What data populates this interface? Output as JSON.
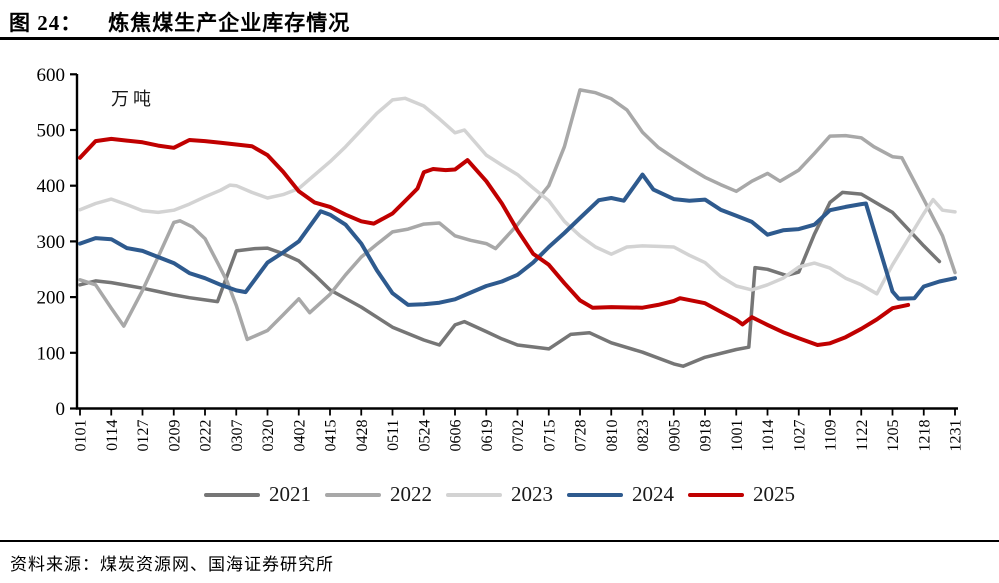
{
  "header": {
    "figure_label": "图 24：",
    "title": "炼焦煤生产企业库存情况"
  },
  "footer": {
    "source": "资料来源：煤炭资源网、国海证券研究所"
  },
  "chart_data": {
    "type": "line",
    "title": "炼焦煤生产企业库存情况",
    "unit_label": "万吨",
    "xlabel": "",
    "ylabel": "万吨",
    "grid": false,
    "legend_position": "bottom",
    "ylim": [
      0,
      600
    ],
    "y_ticks": [
      0,
      100,
      200,
      300,
      400,
      500,
      600
    ],
    "x_note": "categories are MMDD dates; series points are [category_index, value] pairs, fractional index = between labels",
    "categories": [
      "0101",
      "0114",
      "0127",
      "0209",
      "0222",
      "0307",
      "0320",
      "0402",
      "0415",
      "0428",
      "0511",
      "0524",
      "0606",
      "0619",
      "0702",
      "0715",
      "0728",
      "0810",
      "0823",
      "0905",
      "0918",
      "1001",
      "1014",
      "1027",
      "1109",
      "1122",
      "1205",
      "1218",
      "1231"
    ],
    "series": [
      {
        "name": "2021",
        "color": "#767676",
        "points": [
          [
            0,
            222
          ],
          [
            0.5,
            229
          ],
          [
            1,
            226
          ],
          [
            1.5,
            221
          ],
          [
            2,
            216
          ],
          [
            2.5,
            210
          ],
          [
            3,
            204
          ],
          [
            3.5,
            199
          ],
          [
            4,
            195
          ],
          [
            4.4,
            192
          ],
          [
            5,
            283
          ],
          [
            5.6,
            287
          ],
          [
            6,
            288
          ],
          [
            6.5,
            278
          ],
          [
            7,
            265
          ],
          [
            7.5,
            240
          ],
          [
            8,
            213
          ],
          [
            9,
            182
          ],
          [
            10,
            146
          ],
          [
            11,
            123
          ],
          [
            11.5,
            114
          ],
          [
            12,
            150
          ],
          [
            12.3,
            156
          ],
          [
            13,
            138
          ],
          [
            13.5,
            125
          ],
          [
            14,
            114
          ],
          [
            15,
            107
          ],
          [
            15.7,
            133
          ],
          [
            16.3,
            136
          ],
          [
            17,
            118
          ],
          [
            18,
            101
          ],
          [
            19,
            80
          ],
          [
            19.3,
            76
          ],
          [
            20,
            92
          ],
          [
            21,
            106
          ],
          [
            21.4,
            110
          ],
          [
            21.6,
            253
          ],
          [
            22,
            250
          ],
          [
            22.6,
            239
          ],
          [
            23,
            245
          ],
          [
            23.5,
            313
          ],
          [
            24,
            370
          ],
          [
            24.4,
            388
          ],
          [
            25,
            385
          ],
          [
            26,
            352
          ],
          [
            27,
            292
          ],
          [
            27.5,
            264
          ]
        ]
      },
      {
        "name": "2022",
        "color": "#a8a8a8",
        "points": [
          [
            0,
            231
          ],
          [
            0.5,
            222
          ],
          [
            1,
            180
          ],
          [
            1.4,
            148
          ],
          [
            2,
            212
          ],
          [
            2.5,
            272
          ],
          [
            3,
            334
          ],
          [
            3.2,
            337
          ],
          [
            3.6,
            326
          ],
          [
            4,
            305
          ],
          [
            4.4,
            262
          ],
          [
            4.7,
            229
          ],
          [
            5,
            185
          ],
          [
            5.35,
            124
          ],
          [
            6,
            140
          ],
          [
            6.5,
            168
          ],
          [
            7,
            197
          ],
          [
            7.35,
            172
          ],
          [
            8,
            205
          ],
          [
            8.5,
            240
          ],
          [
            9,
            272
          ],
          [
            9.5,
            295
          ],
          [
            10,
            317
          ],
          [
            10.5,
            322
          ],
          [
            11,
            331
          ],
          [
            11.5,
            333
          ],
          [
            12,
            310
          ],
          [
            12.5,
            302
          ],
          [
            13,
            296
          ],
          [
            13.3,
            287
          ],
          [
            14,
            330
          ],
          [
            15,
            400
          ],
          [
            15.5,
            470
          ],
          [
            16,
            572
          ],
          [
            16.5,
            567
          ],
          [
            17,
            556
          ],
          [
            17.5,
            536
          ],
          [
            18,
            496
          ],
          [
            18.5,
            469
          ],
          [
            19,
            450
          ],
          [
            19.5,
            432
          ],
          [
            20,
            415
          ],
          [
            20.5,
            402
          ],
          [
            21,
            390
          ],
          [
            21.5,
            408
          ],
          [
            22,
            422
          ],
          [
            22.4,
            408
          ],
          [
            23,
            428
          ],
          [
            23.5,
            458
          ],
          [
            24,
            489
          ],
          [
            24.5,
            490
          ],
          [
            25,
            486
          ],
          [
            25.4,
            470
          ],
          [
            26,
            452
          ],
          [
            26.3,
            450
          ],
          [
            27,
            375
          ],
          [
            27.6,
            310
          ],
          [
            28,
            244
          ]
        ]
      },
      {
        "name": "2023",
        "color": "#d3d3d3",
        "points": [
          [
            0,
            357
          ],
          [
            0.5,
            368
          ],
          [
            1,
            376
          ],
          [
            1.5,
            366
          ],
          [
            2,
            355
          ],
          [
            2.5,
            352
          ],
          [
            3,
            356
          ],
          [
            3.5,
            367
          ],
          [
            4,
            380
          ],
          [
            4.5,
            392
          ],
          [
            4.8,
            401
          ],
          [
            5,
            400
          ],
          [
            5.5,
            388
          ],
          [
            6,
            378
          ],
          [
            6.5,
            384
          ],
          [
            7,
            395
          ],
          [
            8,
            443
          ],
          [
            8.5,
            470
          ],
          [
            9,
            500
          ],
          [
            9.5,
            530
          ],
          [
            10,
            554
          ],
          [
            10.4,
            557
          ],
          [
            11,
            543
          ],
          [
            11.5,
            520
          ],
          [
            12,
            495
          ],
          [
            12.3,
            500
          ],
          [
            13,
            455
          ],
          [
            13.5,
            437
          ],
          [
            14,
            420
          ],
          [
            14.5,
            396
          ],
          [
            15,
            373
          ],
          [
            15.5,
            336
          ],
          [
            16,
            310
          ],
          [
            16.5,
            290
          ],
          [
            17,
            277
          ],
          [
            17.5,
            290
          ],
          [
            18,
            292
          ],
          [
            18.5,
            291
          ],
          [
            19,
            290
          ],
          [
            19.5,
            275
          ],
          [
            20,
            262
          ],
          [
            20.5,
            237
          ],
          [
            21,
            220
          ],
          [
            21.5,
            213
          ],
          [
            22,
            222
          ],
          [
            22.5,
            234
          ],
          [
            23,
            254
          ],
          [
            23.5,
            261
          ],
          [
            24,
            252
          ],
          [
            24.5,
            234
          ],
          [
            25,
            222
          ],
          [
            25.5,
            206
          ],
          [
            26,
            258
          ],
          [
            27,
            350
          ],
          [
            27.3,
            375
          ],
          [
            27.6,
            356
          ],
          [
            28,
            353
          ]
        ]
      },
      {
        "name": "2024",
        "color": "#2e5a8e",
        "points": [
          [
            0,
            296
          ],
          [
            0.5,
            306
          ],
          [
            1,
            304
          ],
          [
            1.5,
            288
          ],
          [
            2,
            283
          ],
          [
            2.5,
            272
          ],
          [
            3,
            261
          ],
          [
            3.5,
            243
          ],
          [
            4,
            234
          ],
          [
            4.5,
            222
          ],
          [
            5,
            212
          ],
          [
            5.3,
            209
          ],
          [
            6,
            262
          ],
          [
            6.5,
            280
          ],
          [
            7,
            300
          ],
          [
            7.7,
            354
          ],
          [
            8,
            348
          ],
          [
            8.5,
            330
          ],
          [
            9,
            296
          ],
          [
            9.5,
            248
          ],
          [
            10,
            207
          ],
          [
            10.5,
            186
          ],
          [
            11,
            187
          ],
          [
            11.5,
            190
          ],
          [
            12,
            196
          ],
          [
            12.5,
            208
          ],
          [
            13,
            220
          ],
          [
            13.5,
            228
          ],
          [
            14,
            240
          ],
          [
            14.5,
            262
          ],
          [
            15,
            290
          ],
          [
            15.5,
            315
          ],
          [
            16,
            342
          ],
          [
            16.6,
            374
          ],
          [
            17,
            378
          ],
          [
            17.4,
            373
          ],
          [
            18,
            420
          ],
          [
            18.35,
            393
          ],
          [
            19,
            376
          ],
          [
            19.5,
            373
          ],
          [
            20,
            375
          ],
          [
            20.5,
            357
          ],
          [
            21,
            346
          ],
          [
            21.5,
            335
          ],
          [
            22,
            312
          ],
          [
            22.5,
            320
          ],
          [
            23,
            322
          ],
          [
            23.5,
            330
          ],
          [
            24,
            356
          ],
          [
            24.5,
            362
          ],
          [
            25,
            367
          ],
          [
            25.15,
            368
          ],
          [
            26,
            210
          ],
          [
            26.2,
            197
          ],
          [
            26.7,
            198
          ],
          [
            27,
            219
          ],
          [
            27.5,
            228
          ],
          [
            28,
            234
          ]
        ]
      },
      {
        "name": "2025",
        "color": "#c00000",
        "points": [
          [
            0,
            450
          ],
          [
            0.5,
            480
          ],
          [
            1,
            484
          ],
          [
            1.5,
            481
          ],
          [
            2,
            478
          ],
          [
            2.5,
            472
          ],
          [
            3,
            468
          ],
          [
            3.5,
            482
          ],
          [
            4,
            480
          ],
          [
            4.5,
            477
          ],
          [
            5,
            474
          ],
          [
            5.5,
            471
          ],
          [
            6,
            455
          ],
          [
            6.5,
            425
          ],
          [
            7,
            390
          ],
          [
            7.5,
            370
          ],
          [
            8,
            362
          ],
          [
            8.5,
            348
          ],
          [
            9,
            336
          ],
          [
            9.4,
            332
          ],
          [
            10,
            350
          ],
          [
            10.5,
            378
          ],
          [
            10.8,
            395
          ],
          [
            11,
            424
          ],
          [
            11.3,
            430
          ],
          [
            11.7,
            428
          ],
          [
            12,
            429
          ],
          [
            12.4,
            446
          ],
          [
            13,
            408
          ],
          [
            13.5,
            368
          ],
          [
            14,
            320
          ],
          [
            14.5,
            278
          ],
          [
            15,
            258
          ],
          [
            15.5,
            225
          ],
          [
            16,
            194
          ],
          [
            16.4,
            181
          ],
          [
            17,
            182
          ],
          [
            18,
            181
          ],
          [
            18.5,
            186
          ],
          [
            19,
            193
          ],
          [
            19.2,
            198
          ],
          [
            20,
            189
          ],
          [
            20.5,
            174
          ],
          [
            21,
            159
          ],
          [
            21.2,
            151
          ],
          [
            21.5,
            164
          ],
          [
            22,
            150
          ],
          [
            22.5,
            137
          ],
          [
            23,
            126
          ],
          [
            23.6,
            114
          ],
          [
            24,
            117
          ],
          [
            24.5,
            128
          ],
          [
            25,
            143
          ],
          [
            25.5,
            160
          ],
          [
            26,
            180
          ],
          [
            26.5,
            186
          ]
        ]
      }
    ]
  }
}
